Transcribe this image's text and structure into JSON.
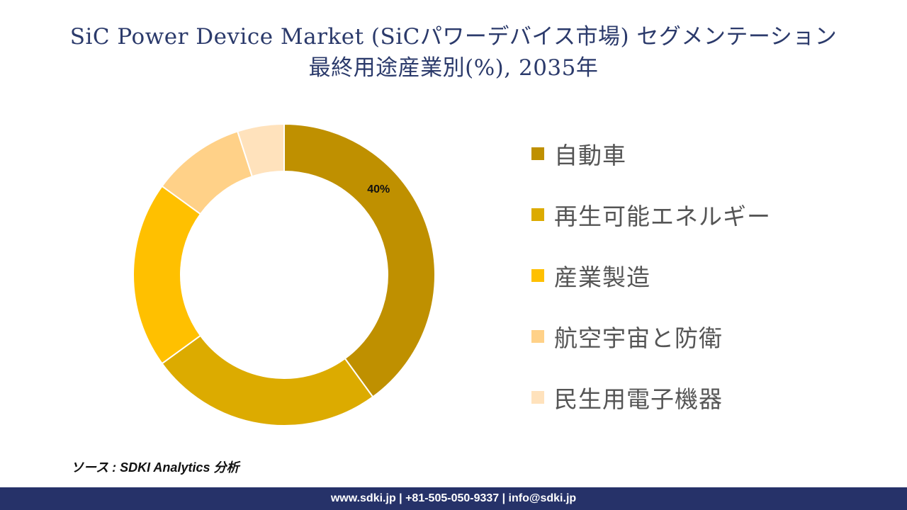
{
  "title": {
    "line1": "SiC Power Device Market (SiCパワーデバイス市場) セグメンテーション",
    "line2": "最終用途産業別(%), 2035年"
  },
  "chart_data": {
    "type": "pie",
    "donut": true,
    "categories": [
      "自動車",
      "再生可能エネルギー",
      "産業製造",
      "航空宇宙と防衛",
      "民生用電子機器"
    ],
    "values": [
      40,
      25,
      20,
      10,
      5
    ],
    "colors": [
      "#bf9000",
      "#dcab00",
      "#ffc000",
      "#ffd188",
      "#ffe2bc"
    ],
    "data_labels": [
      "40%",
      "",
      "",
      "",
      ""
    ],
    "legend_position": "right"
  },
  "source": "ソース : SDKI Analytics 分析",
  "footer": "www.sdki.jp | +81-505-050-9337 | info@sdki.jp"
}
